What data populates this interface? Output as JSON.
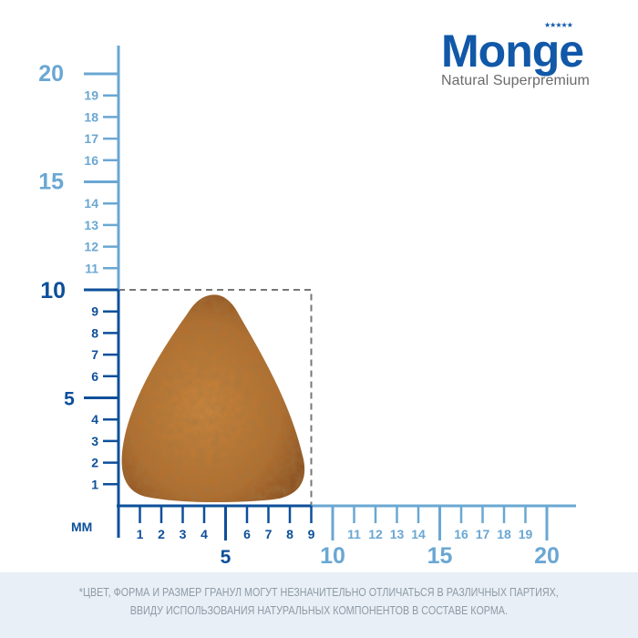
{
  "brand": {
    "name": "Monge",
    "tagline": "Natural Superpremium",
    "color": "#1158a8"
  },
  "ruler": {
    "unit_label": "ММ",
    "dark_color": "#0d4f9a",
    "light_color": "#6aa7d3",
    "y_minor_labels": [
      "1",
      "2",
      "3",
      "4",
      "6",
      "7",
      "8",
      "9",
      "11",
      "12",
      "13",
      "14",
      "16",
      "17",
      "18",
      "19"
    ],
    "y_major_labels": [
      "5",
      "10",
      "15",
      "20"
    ],
    "x_minor_labels": [
      "1",
      "2",
      "3",
      "4",
      "6",
      "7",
      "8",
      "9",
      "11",
      "12",
      "13",
      "14",
      "16",
      "17",
      "18",
      "19"
    ],
    "x_major_labels": [
      "5",
      "10",
      "15",
      "20"
    ],
    "kibble_size_mm": {
      "width": 9,
      "height": 10
    }
  },
  "footer": {
    "line1": "*ЦВЕТ, ФОРМА И РАЗМЕР ГРАНУЛ МОГУТ НЕЗНАЧИТЕЛЬНО ОТЛИЧАТЬСЯ В РАЗЛИЧНЫХ ПАРТИЯХ,",
    "line2": "ВВИДУ ИСПОЛЬЗОВАНИЯ НАТУРАЛЬНЫХ КОМПОНЕНТОВ В СОСТАВЕ КОРМА."
  }
}
